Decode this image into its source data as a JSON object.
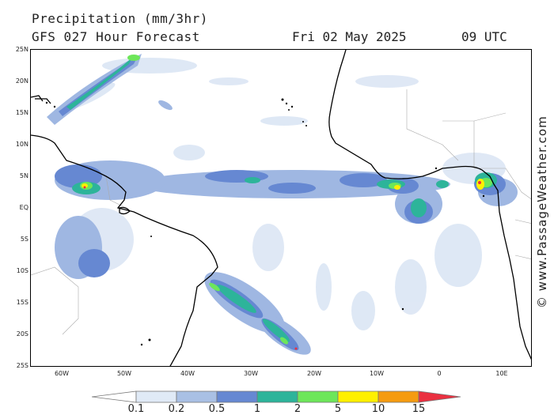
{
  "header": {
    "title": "Precipitation (mm/3hr)",
    "subtitle": "GFS 027 Hour Forecast",
    "date": "Fri 02 May 2025",
    "time": "09 UTC"
  },
  "watermark": "© www.PassageWeather.com",
  "lat_labels": [
    "25N",
    "20N",
    "15N",
    "10N",
    "5N",
    "EQ",
    "5S",
    "10S",
    "15S",
    "20S",
    "25S"
  ],
  "lon_labels": [
    "60W",
    "50W",
    "40W",
    "30W",
    "20W",
    "10W",
    "0",
    "10E"
  ],
  "legend": {
    "ticks": [
      "0.1",
      "0.2",
      "0.5",
      "1",
      "2",
      "5",
      "10",
      "15"
    ],
    "colors": [
      "#ffffff",
      "#e0eaf6",
      "#a9c0e4",
      "#6688d2",
      "#2db49a",
      "#6de65a",
      "#fff000",
      "#f59b10",
      "#ea3040"
    ]
  },
  "colors": {
    "land": "#ffffff",
    "ocean": "#ffffff",
    "coast": "#000000",
    "border": "#999999",
    "rain_light": "#dbe6f4",
    "rain_med": "#9fb7e2",
    "rain_blue": "#6688d2",
    "rain_teal": "#2db49a",
    "rain_green": "#6de65a",
    "rain_yellow": "#fff000",
    "rain_red": "#ea3040"
  }
}
